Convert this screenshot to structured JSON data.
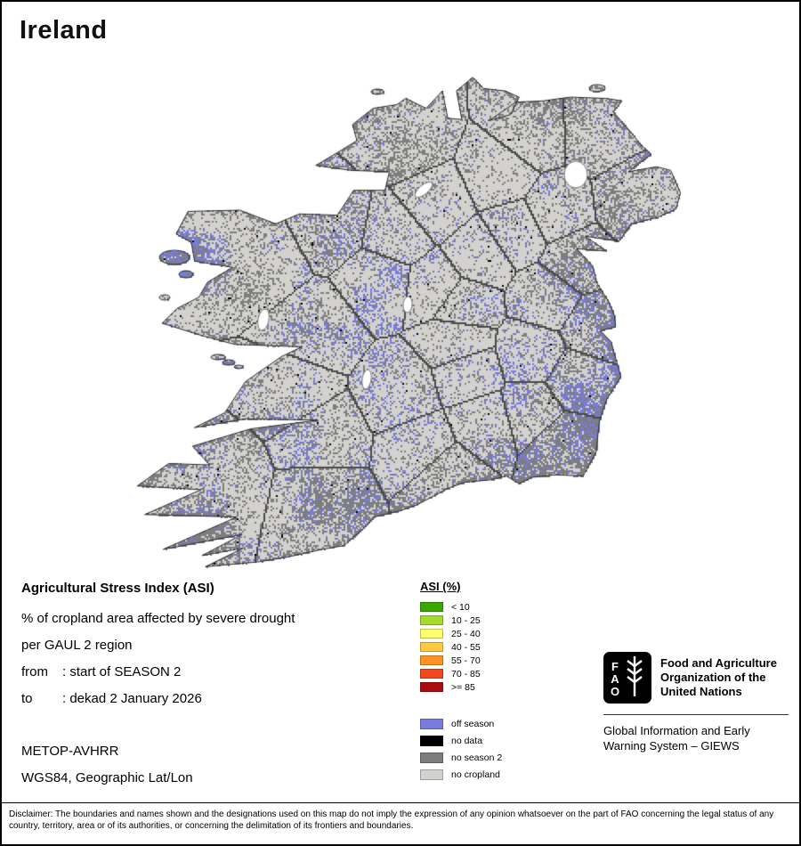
{
  "title": "Ireland",
  "info": {
    "heading": "Agricultural Stress Index (ASI)",
    "subtitle1": "% of cropland area affected by severe drought",
    "subtitle2": "per GAUL 2 region",
    "from_label": "from",
    "from_value": ": start of SEASON 2",
    "to_label": "to",
    "to_value": ": dekad 2 January 2026",
    "sensor": "METOP-AVHRR",
    "projection": "WGS84, Geographic Lat/Lon"
  },
  "legend": {
    "title": "ASI (%)",
    "classes": [
      {
        "label": "< 10",
        "color": "#38a800"
      },
      {
        "label": "10 - 25",
        "color": "#a5db2a"
      },
      {
        "label": "25 - 40",
        "color": "#ffff6b"
      },
      {
        "label": "40 - 55",
        "color": "#ffc940"
      },
      {
        "label": "55 - 70",
        "color": "#ff9224"
      },
      {
        "label": "70 - 85",
        "color": "#f2481c"
      },
      {
        "label": ">= 85",
        "color": "#ab0c0f"
      }
    ],
    "extras": [
      {
        "label": "off season",
        "color": "#777cdf"
      },
      {
        "label": "no data",
        "color": "#000000"
      },
      {
        "label": "no season 2",
        "color": "#7d7d7d"
      },
      {
        "label": "no cropland",
        "color": "#d4d2cf"
      }
    ]
  },
  "map": {
    "coastline_color": "#26282a",
    "boundary_color": "#4a4a4a"
  },
  "fao": {
    "logo_letters": "FAO",
    "org_name": "Food and Agriculture Organization of the United Nations",
    "giews": "Global Information and Early Warning System – GIEWS"
  },
  "disclaimer": "Disclaimer: The boundaries and names shown and the designations used on this map do not imply the expression of any opinion whatsoever on the part of FAO concerning the legal status of any country, territory, area or of its authorities, or concerning the delimitation of its frontiers and boundaries."
}
